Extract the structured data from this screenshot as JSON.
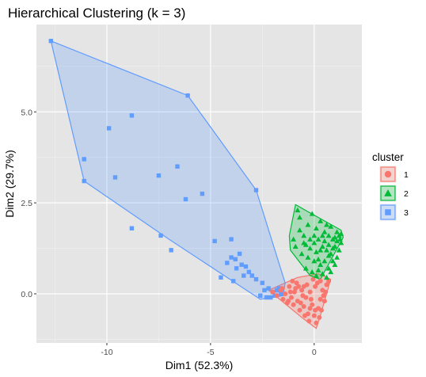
{
  "chart_data": {
    "type": "scatter",
    "title": "Hierarchical Clustering (k = 3)",
    "xlabel": "Dim1 (52.3%)",
    "ylabel": "Dim2 (29.7%)",
    "xlim": [
      -13.4,
      2.3
    ],
    "ylim": [
      -1.35,
      7.4
    ],
    "x_ticks": [
      -10,
      -5,
      0
    ],
    "x_tick_labels": [
      "-10",
      "-5",
      "0"
    ],
    "y_ticks": [
      0.0,
      2.5,
      5.0
    ],
    "y_tick_labels": [
      "0.0",
      "2.5",
      "5.0"
    ],
    "grid": true,
    "panel_background": "#e5e5e5",
    "legend": {
      "title": "cluster",
      "position": "right",
      "entries": [
        {
          "label": "1",
          "shape": "circle",
          "color": "#F8766D"
        },
        {
          "label": "2",
          "shape": "triangle",
          "color": "#00BA38"
        },
        {
          "label": "3",
          "shape": "square",
          "color": "#619CFF"
        }
      ]
    },
    "series": [
      {
        "name": "1",
        "shape": "circle",
        "color": "#F8766D",
        "hull": [
          [
            -2.2,
            0.1
          ],
          [
            -0.8,
            0.45
          ],
          [
            0.2,
            0.55
          ],
          [
            0.8,
            0.4
          ],
          [
            0.3,
            -0.6
          ],
          [
            0.1,
            -0.95
          ],
          [
            -0.6,
            -0.65
          ]
        ],
        "points": [
          [
            -2.0,
            0.05
          ],
          [
            -1.8,
            -0.05
          ],
          [
            -1.6,
            0.1
          ],
          [
            -1.5,
            -0.15
          ],
          [
            -1.4,
            0.0
          ],
          [
            -1.3,
            -0.25
          ],
          [
            -1.2,
            0.2
          ],
          [
            -1.1,
            -0.1
          ],
          [
            -1.0,
            -0.3
          ],
          [
            -0.9,
            0.15
          ],
          [
            -0.8,
            -0.2
          ],
          [
            -0.7,
            -0.45
          ],
          [
            -0.6,
            0.1
          ],
          [
            -0.5,
            -0.35
          ],
          [
            -0.4,
            -0.1
          ],
          [
            -0.3,
            -0.55
          ],
          [
            -0.2,
            0.05
          ],
          [
            -0.1,
            -0.3
          ],
          [
            0.0,
            -0.6
          ],
          [
            0.1,
            -0.8
          ],
          [
            0.2,
            -0.4
          ],
          [
            0.3,
            -0.15
          ],
          [
            0.4,
            0.1
          ],
          [
            0.5,
            -0.2
          ],
          [
            0.6,
            0.25
          ],
          [
            0.7,
            0.35
          ],
          [
            -1.05,
            0.35
          ],
          [
            -0.85,
            0.3
          ],
          [
            -0.55,
            -0.05
          ],
          [
            -0.35,
            0.25
          ],
          [
            -0.15,
            -0.15
          ],
          [
            0.05,
            0.2
          ],
          [
            0.25,
            -0.65
          ],
          [
            0.15,
            0.3
          ],
          [
            -0.25,
            -0.75
          ],
          [
            -0.45,
            -0.6
          ],
          [
            -0.65,
            -0.25
          ],
          [
            -0.95,
            0.05
          ],
          [
            -1.25,
            -0.2
          ],
          [
            -1.55,
            0.15
          ],
          [
            0.35,
            -0.45
          ],
          [
            0.45,
            -0.05
          ],
          [
            0.55,
            0.05
          ],
          [
            -0.75,
            0.2
          ],
          [
            -1.15,
            0.05
          ],
          [
            -0.05,
            0.4
          ],
          [
            0.05,
            -0.45
          ],
          [
            0.3,
            0.35
          ],
          [
            -0.2,
            -0.4
          ],
          [
            -0.5,
            0.2
          ]
        ]
      },
      {
        "name": "2",
        "shape": "triangle",
        "color": "#00BA38",
        "hull": [
          [
            -0.9,
            2.45
          ],
          [
            1.3,
            1.75
          ],
          [
            1.4,
            1.55
          ],
          [
            0.3,
            0.4
          ],
          [
            -0.2,
            0.5
          ],
          [
            -1.15,
            1.2
          ],
          [
            -1.2,
            1.6
          ]
        ],
        "points": [
          [
            -0.8,
            2.3
          ],
          [
            -0.7,
            2.1
          ],
          [
            -0.3,
            1.9
          ],
          [
            -0.1,
            2.2
          ],
          [
            0.1,
            1.8
          ],
          [
            0.3,
            2.0
          ],
          [
            0.5,
            1.7
          ],
          [
            0.7,
            1.6
          ],
          [
            0.9,
            1.5
          ],
          [
            1.1,
            1.7
          ],
          [
            1.2,
            1.6
          ],
          [
            1.3,
            1.65
          ],
          [
            -0.5,
            1.6
          ],
          [
            -0.2,
            1.5
          ],
          [
            0.0,
            1.4
          ],
          [
            0.2,
            1.5
          ],
          [
            0.4,
            1.3
          ],
          [
            0.6,
            1.2
          ],
          [
            0.8,
            1.1
          ],
          [
            1.0,
            1.3
          ],
          [
            -0.9,
            1.3
          ],
          [
            -0.6,
            1.1
          ],
          [
            -0.3,
            1.0
          ],
          [
            0.0,
            0.9
          ],
          [
            0.3,
            0.8
          ],
          [
            0.5,
            0.9
          ],
          [
            0.7,
            0.7
          ],
          [
            0.9,
            0.9
          ],
          [
            1.1,
            1.0
          ],
          [
            -0.4,
            0.7
          ],
          [
            -0.1,
            0.6
          ],
          [
            0.1,
            0.5
          ],
          [
            0.2,
            0.65
          ],
          [
            0.4,
            0.55
          ],
          [
            0.6,
            0.45
          ],
          [
            0.8,
            0.6
          ],
          [
            1.0,
            0.8
          ],
          [
            1.2,
            1.2
          ],
          [
            1.3,
            1.4
          ],
          [
            1.1,
            1.45
          ],
          [
            0.9,
            1.25
          ],
          [
            0.7,
            1.35
          ],
          [
            0.5,
            1.45
          ],
          [
            0.3,
            1.2
          ],
          [
            0.1,
            1.15
          ],
          [
            -0.2,
            1.25
          ],
          [
            -0.5,
            1.4
          ],
          [
            -0.7,
            1.75
          ],
          [
            -1.0,
            1.5
          ],
          [
            0.6,
            1.9
          ],
          [
            0.8,
            1.85
          ],
          [
            1.0,
            1.55
          ],
          [
            1.25,
            1.5
          ],
          [
            0.4,
            1.6
          ],
          [
            0.2,
            0.95
          ],
          [
            0.0,
            1.6
          ],
          [
            -0.4,
            1.35
          ],
          [
            0.7,
            1.05
          ]
        ]
      },
      {
        "name": "3",
        "shape": "square",
        "color": "#619CFF",
        "hull": [
          [
            -12.7,
            6.95
          ],
          [
            -6.1,
            5.45
          ],
          [
            -2.8,
            2.85
          ],
          [
            -1.4,
            0.3
          ],
          [
            -1.5,
            -0.05
          ],
          [
            -2.6,
            -0.15
          ],
          [
            -7.0,
            1.5
          ],
          [
            -11.1,
            3.1
          ]
        ],
        "points": [
          [
            -12.7,
            6.95
          ],
          [
            -6.1,
            5.45
          ],
          [
            -2.8,
            2.85
          ],
          [
            -11.1,
            3.1
          ],
          [
            -8.8,
            4.9
          ],
          [
            -9.9,
            4.55
          ],
          [
            -11.1,
            3.7
          ],
          [
            -9.6,
            3.2
          ],
          [
            -7.5,
            3.25
          ],
          [
            -6.6,
            3.5
          ],
          [
            -6.2,
            2.6
          ],
          [
            -5.4,
            2.75
          ],
          [
            -8.8,
            1.8
          ],
          [
            -7.4,
            1.6
          ],
          [
            -6.9,
            1.2
          ],
          [
            -4.8,
            1.45
          ],
          [
            -4.0,
            1.0
          ],
          [
            -3.8,
            0.95
          ],
          [
            -3.5,
            0.8
          ],
          [
            -3.3,
            0.75
          ],
          [
            -4.5,
            0.45
          ],
          [
            -3.9,
            0.35
          ],
          [
            -3.4,
            0.5
          ],
          [
            -3.0,
            0.5
          ],
          [
            -2.8,
            0.4
          ],
          [
            -2.5,
            0.3
          ],
          [
            -2.2,
            0.15
          ],
          [
            -2.0,
            0.05
          ],
          [
            -1.9,
            -0.05
          ],
          [
            -1.7,
            0.15
          ],
          [
            -1.6,
            0.0
          ],
          [
            -2.3,
            -0.1
          ],
          [
            -2.6,
            -0.05
          ],
          [
            -4.2,
            0.85
          ],
          [
            -3.6,
            1.1
          ],
          [
            -2.4,
            0.1
          ],
          [
            -3.75,
            0.7
          ],
          [
            -3.15,
            0.6
          ],
          [
            -2.1,
            -0.1
          ],
          [
            -1.8,
            0.1
          ],
          [
            -4.0,
            1.5
          ]
        ]
      }
    ]
  }
}
